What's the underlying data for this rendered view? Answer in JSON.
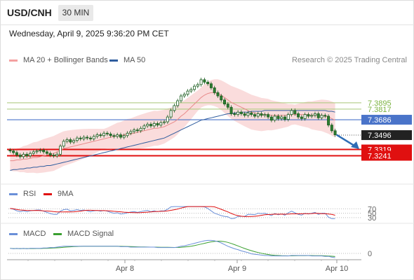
{
  "header": {
    "symbol": "USD/CNH",
    "timeframe": "30 MIN",
    "timestamp": "Wednesday, April 9, 2025 9:36:20 PM CET"
  },
  "legend_main": [
    {
      "label": "MA 20 + Bollinger Bands",
      "color": "#f4a0a0"
    },
    {
      "label": "MA 50",
      "color": "#2f5d9e"
    }
  ],
  "copyright": "Research © 2025 Trading Central",
  "legend_rsi": [
    {
      "label": "RSI",
      "color": "#6a8fd8"
    },
    {
      "label": "9MA",
      "color": "#e01010"
    }
  ],
  "legend_macd": [
    {
      "label": "MACD",
      "color": "#6a8fd8"
    },
    {
      "label": "MACD Signal",
      "color": "#3aa030"
    }
  ],
  "colors": {
    "up": "#2e7d32",
    "down": "#2e7d32",
    "support": "#e01010",
    "resistance": "#a8c878",
    "current": "#4a74c9",
    "bb": "#f8d0d0",
    "arrow": "#2f6db5"
  },
  "chart_data": {
    "type": "candlestick",
    "price_axis": {
      "min": 7.29,
      "max": 7.43
    },
    "x_ticks": [
      "Apr 8",
      "Apr 9",
      "Apr 10"
    ],
    "price_labels": [
      {
        "value": 7.3895,
        "text": "7.3895",
        "style": "resistance"
      },
      {
        "value": 7.3817,
        "text": "7.3817",
        "style": "resistance"
      },
      {
        "value": 7.3686,
        "text": "7.3686",
        "style": "current"
      },
      {
        "value": 7.3496,
        "text": "7.3496",
        "style": "last"
      },
      {
        "value": 7.3319,
        "text": "7.3319",
        "style": "support"
      },
      {
        "value": 7.3241,
        "text": "7.3241",
        "style": "support"
      }
    ],
    "close": [
      7.33,
      7.328,
      7.325,
      7.323,
      7.326,
      7.324,
      7.327,
      7.329,
      7.33,
      7.331,
      7.329,
      7.327,
      7.325,
      7.324,
      7.326,
      7.336,
      7.342,
      7.344,
      7.341,
      7.343,
      7.346,
      7.345,
      7.347,
      7.346,
      7.345,
      7.348,
      7.35,
      7.349,
      7.352,
      7.351,
      7.349,
      7.348,
      7.35,
      7.347,
      7.349,
      7.352,
      7.354,
      7.356,
      7.355,
      7.358,
      7.361,
      7.363,
      7.361,
      7.364,
      7.362,
      7.365,
      7.366,
      7.372,
      7.38,
      7.386,
      7.392,
      7.398,
      7.4,
      7.404,
      7.406,
      7.41,
      7.412,
      7.418,
      7.415,
      7.413,
      7.408,
      7.402,
      7.398,
      7.393,
      7.388,
      7.384,
      7.376,
      7.375,
      7.378,
      7.376,
      7.374,
      7.377,
      7.375,
      7.373,
      7.376,
      7.374,
      7.375,
      7.372,
      7.368,
      7.373,
      7.37,
      7.372,
      7.369,
      7.375,
      7.38,
      7.376,
      7.372,
      7.37,
      7.375,
      7.373,
      7.374,
      7.376,
      7.371,
      7.374,
      7.373,
      7.362,
      7.355,
      7.35
    ],
    "ma20": [
      7.318,
      7.318,
      7.319,
      7.319,
      7.32,
      7.32,
      7.321,
      7.322,
      7.322,
      7.323,
      7.324,
      7.325,
      7.326,
      7.327,
      7.329,
      7.331,
      7.333,
      7.334,
      7.335,
      7.336,
      7.337,
      7.338,
      7.339,
      7.34,
      7.341,
      7.342,
      7.343,
      7.344,
      7.345,
      7.346,
      7.347,
      7.348,
      7.349,
      7.349,
      7.35,
      7.351,
      7.351,
      7.352,
      7.353,
      7.354,
      7.355,
      7.356,
      7.357,
      7.358,
      7.358,
      7.359,
      7.36,
      7.362,
      7.364,
      7.366,
      7.369,
      7.373,
      7.376,
      7.38,
      7.384,
      7.388,
      7.392,
      7.396,
      7.399,
      7.401,
      7.402,
      7.402,
      7.401,
      7.399,
      7.396,
      7.393,
      7.39,
      7.388,
      7.386,
      7.384,
      7.382,
      7.38,
      7.378,
      7.377,
      7.376,
      7.375,
      7.375,
      7.375,
      7.374,
      7.374,
      7.374,
      7.374,
      7.374,
      7.374,
      7.375,
      7.375,
      7.375,
      7.375,
      7.375,
      7.375,
      7.374,
      7.374,
      7.374,
      7.374,
      7.373,
      7.372,
      7.37,
      7.368
    ],
    "ma50": [
      7.306,
      7.307,
      7.307,
      7.308,
      7.308,
      7.309,
      7.309,
      7.31,
      7.31,
      7.311,
      7.311,
      7.312,
      7.312,
      7.313,
      7.314,
      7.315,
      7.316,
      7.317,
      7.318,
      7.319,
      7.32,
      7.321,
      7.322,
      7.323,
      7.324,
      7.325,
      7.326,
      7.327,
      7.328,
      7.329,
      7.33,
      7.331,
      7.332,
      7.333,
      7.334,
      7.335,
      7.336,
      7.337,
      7.338,
      7.339,
      7.34,
      7.341,
      7.342,
      7.343,
      7.344,
      7.345,
      7.346,
      7.348,
      7.35,
      7.352,
      7.354,
      7.356,
      7.358,
      7.36,
      7.362,
      7.364,
      7.366,
      7.368,
      7.369,
      7.37,
      7.371,
      7.372,
      7.373,
      7.374,
      7.375,
      7.376,
      7.376,
      7.377,
      7.377,
      7.378,
      7.378,
      7.378,
      7.379,
      7.379,
      7.379,
      7.379,
      7.38,
      7.38,
      7.38,
      7.38,
      7.38,
      7.38,
      7.38,
      7.38,
      7.38,
      7.38,
      7.38,
      7.38,
      7.38,
      7.38,
      7.38,
      7.38,
      7.38,
      7.38,
      7.38,
      7.379,
      7.379,
      7.378
    ],
    "bb_width": 0.012,
    "rsi_levels": [
      70,
      50,
      30
    ],
    "macd_zero_label": "0"
  }
}
